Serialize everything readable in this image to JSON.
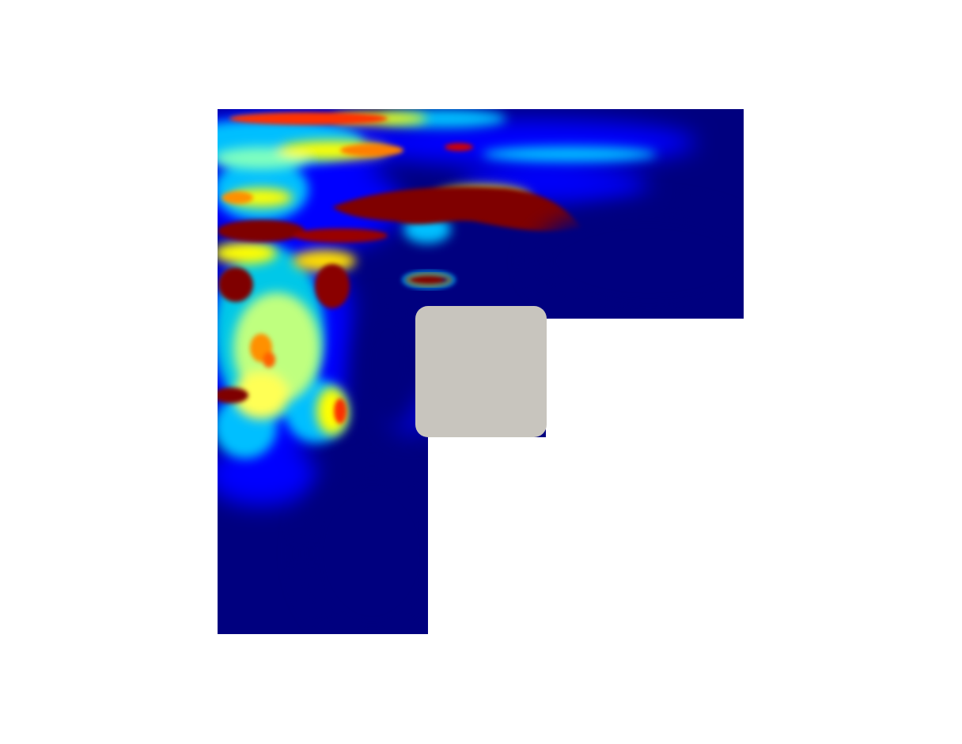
{
  "render_view": {
    "background_color": "#ffffff",
    "domain_shape": "L-shaped",
    "colormap": "jet",
    "colormap_stops": [
      "#00007f",
      "#0000ff",
      "#00bfff",
      "#7fffbf",
      "#ffff00",
      "#ff7f00",
      "#ff0000",
      "#7f0000"
    ],
    "base_color": "#00007f",
    "obstacle": {
      "shape": "rounded-square",
      "color": "#c8c5be"
    }
  }
}
